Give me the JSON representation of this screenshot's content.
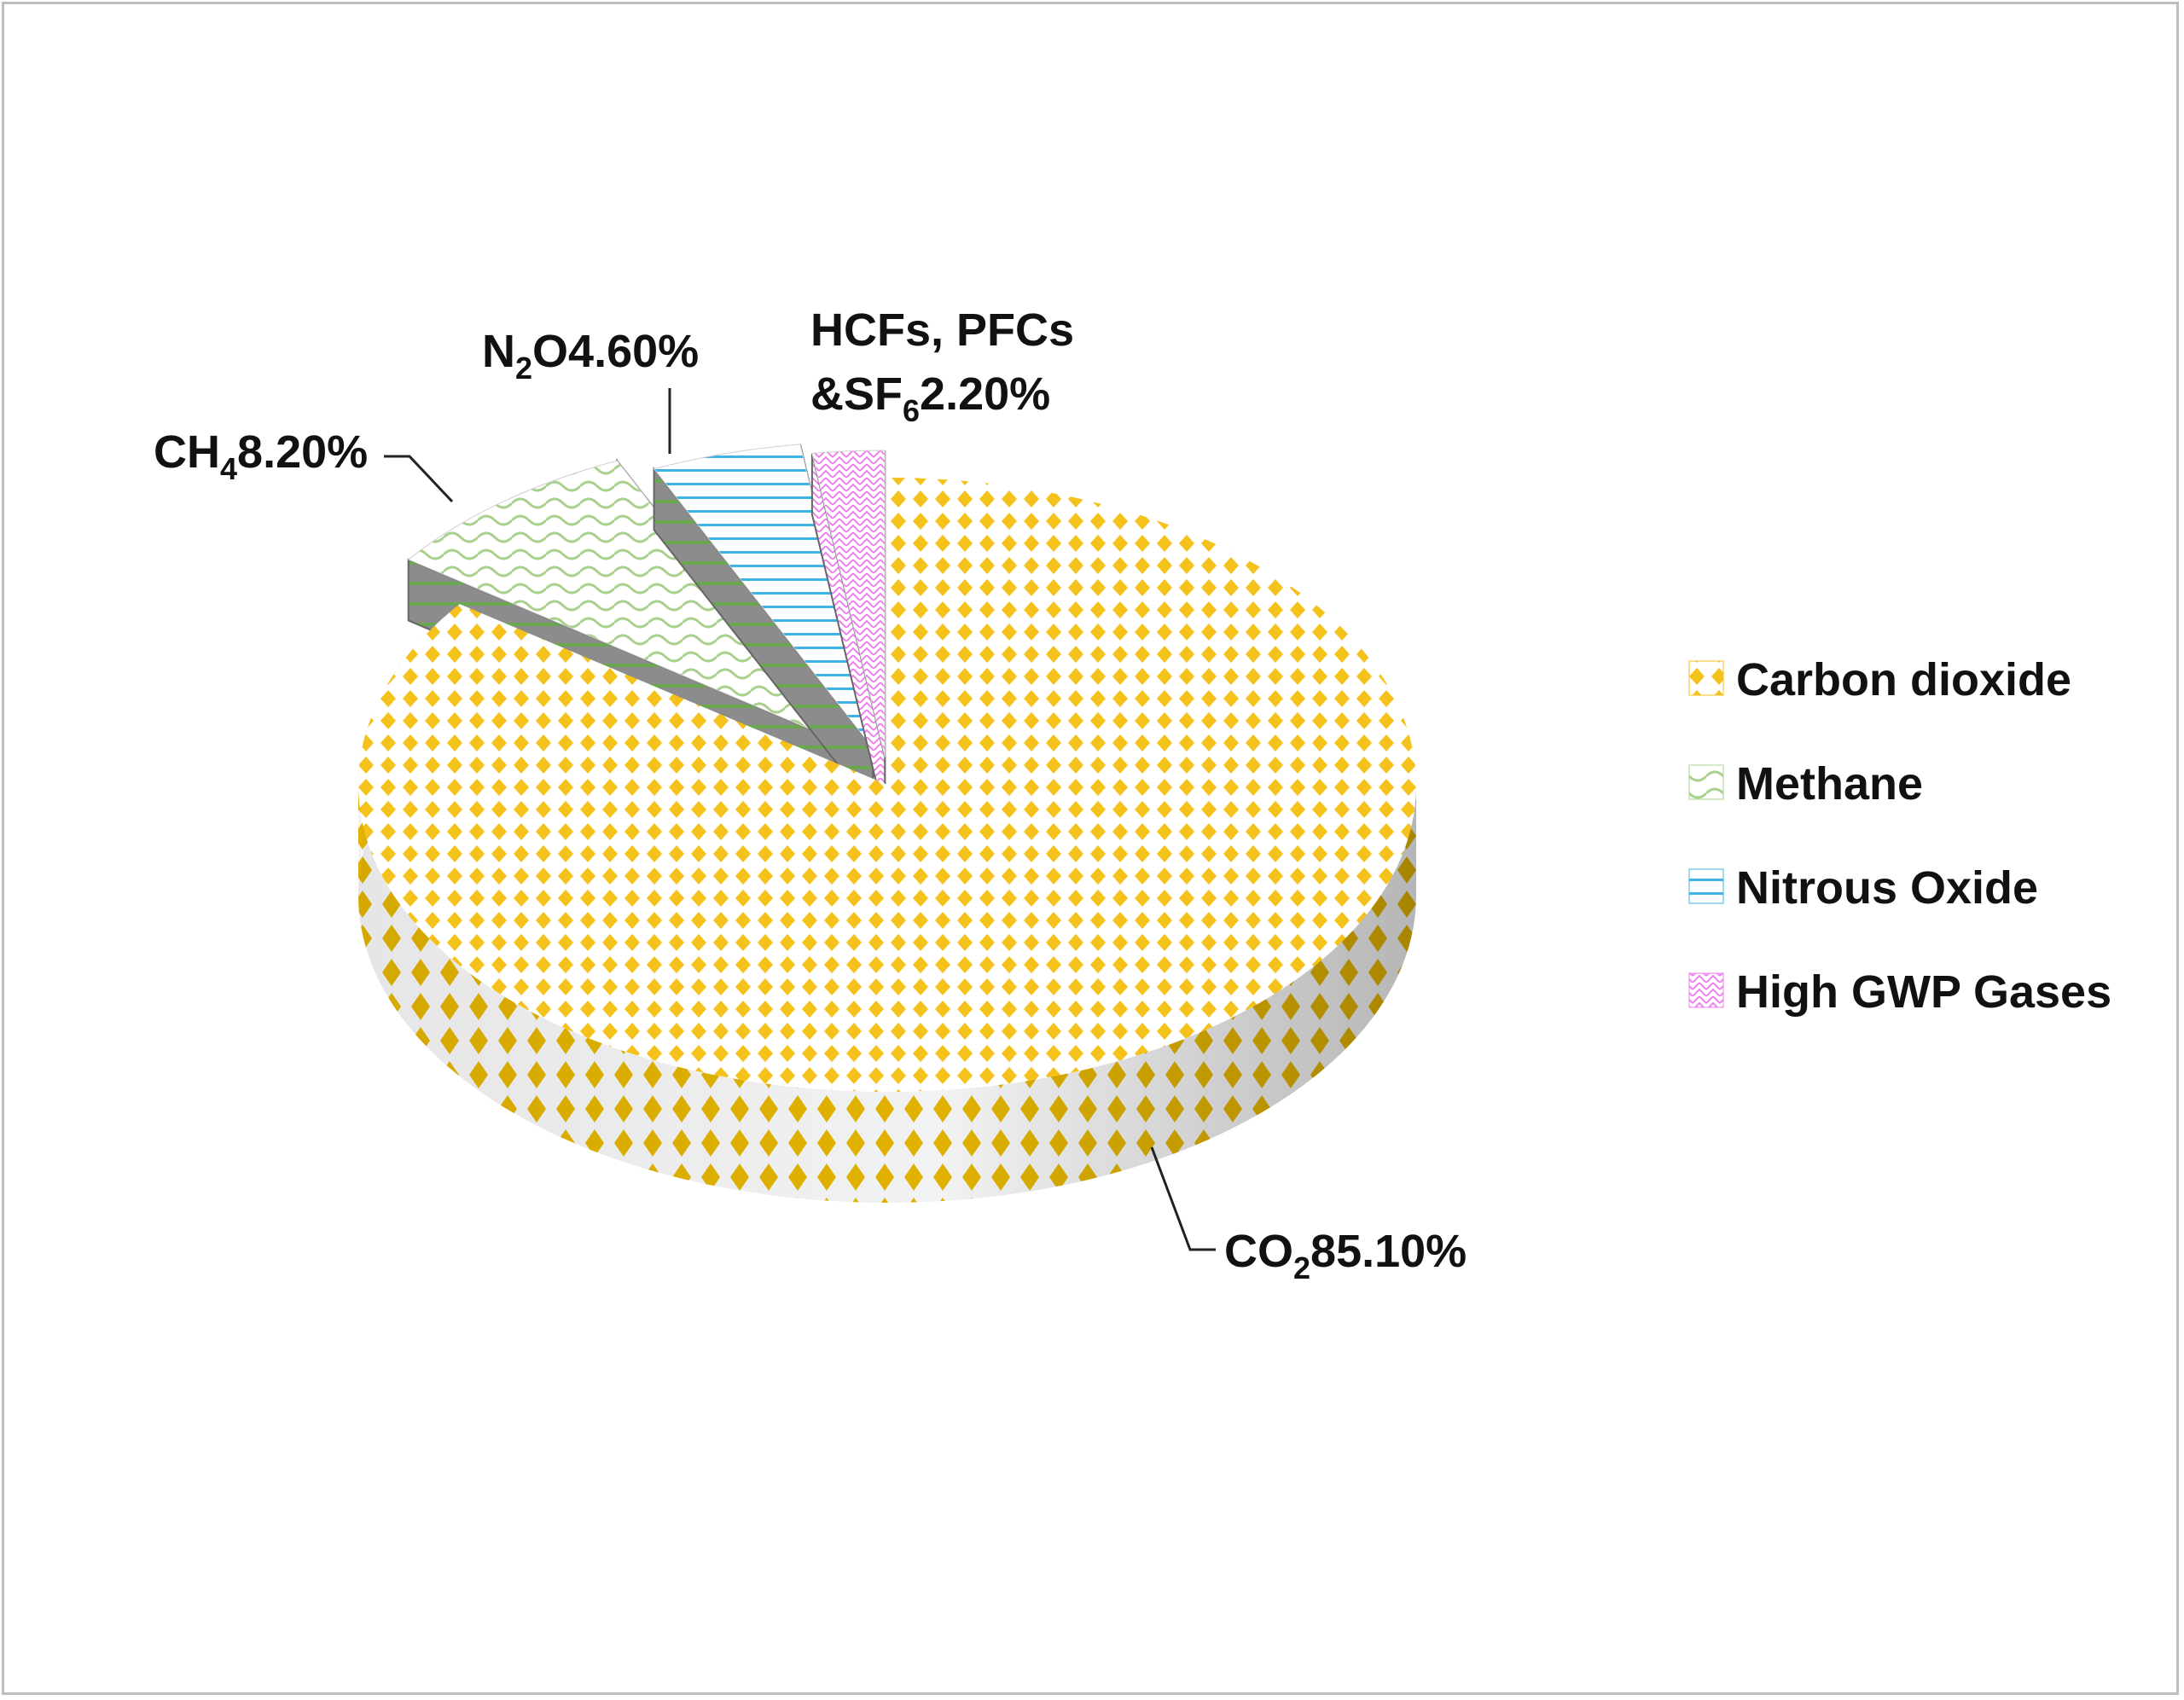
{
  "chart_data": {
    "type": "pie",
    "style": "3d-exploded",
    "title": "",
    "categories": [
      "Carbon dioxide",
      "Methane",
      "Nitrous Oxide",
      "High GWP Gases"
    ],
    "values": [
      85.1,
      8.2,
      4.6,
      2.2
    ],
    "unit": "%",
    "data_labels": [
      {
        "main": "CO",
        "sub": "2",
        "value": "85.10%"
      },
      {
        "main": "CH",
        "sub": "4",
        "value": "8.20%"
      },
      {
        "main": "N",
        "sub": "2",
        "rest": "O",
        "value": "4.60%"
      },
      {
        "line1": "HCFs, PFCs",
        "main": "&SF",
        "sub": "6",
        "value": "2.20%"
      }
    ],
    "legend": {
      "position": "right",
      "entries": [
        "Carbon dioxide",
        "Methane",
        "Nitrous Oxide",
        "High GWP Gases"
      ]
    },
    "colors": {
      "carbon_dioxide": "#f5c21b",
      "methane": "#a9d18e",
      "nitrous_oxide": "#3cb4e5",
      "high_gwp": "#ee82ee"
    }
  }
}
